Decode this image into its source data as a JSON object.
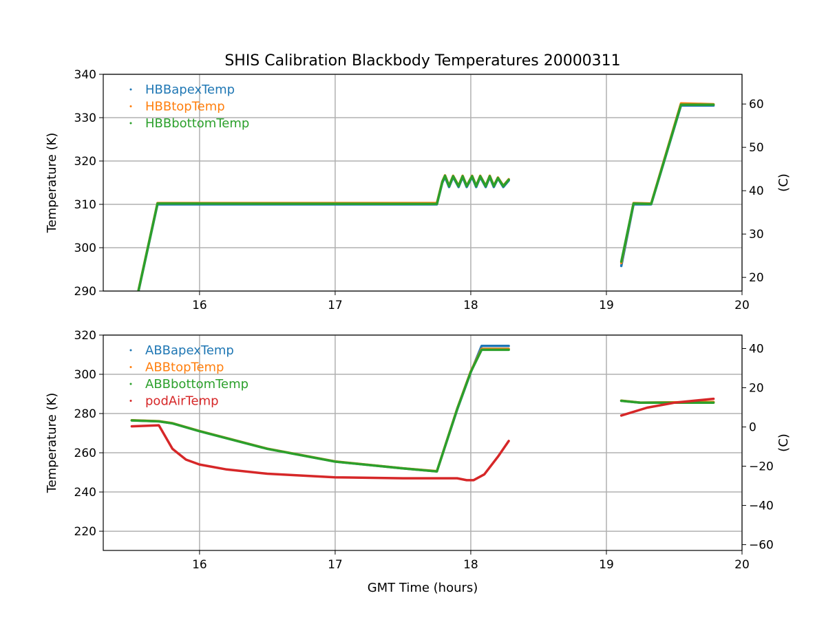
{
  "chart_data": [
    {
      "type": "line",
      "title": "SHIS Calibration Blackbody Temperatures 20000311",
      "xlabel": "",
      "ylabel": "Temperature (K)",
      "ylabel_right": "(C)",
      "xlim": [
        15.29,
        20
      ],
      "ylim": [
        290,
        340
      ],
      "xticks": [
        16,
        17,
        18,
        19,
        20
      ],
      "yticks": [
        290,
        300,
        310,
        320,
        330,
        340
      ],
      "yticks_right": [
        20,
        30,
        40,
        50,
        60
      ],
      "grid": true,
      "legend": "top-left",
      "series": [
        {
          "name": "HBBapexTemp",
          "color": "#1f77b4",
          "segments": [
            [
              [
                15.55,
                290
              ],
              [
                15.69,
                310
              ],
              [
                17.75,
                310
              ],
              [
                17.79,
                315
              ],
              [
                17.81,
                316.3
              ],
              [
                17.84,
                314
              ],
              [
                17.87,
                316.3
              ],
              [
                17.91,
                314
              ],
              [
                17.94,
                316.3
              ],
              [
                17.97,
                314
              ],
              [
                18.01,
                316.3
              ],
              [
                18.04,
                314
              ],
              [
                18.07,
                316.3
              ],
              [
                18.11,
                314
              ],
              [
                18.14,
                316.3
              ],
              [
                18.17,
                314
              ],
              [
                18.2,
                316
              ],
              [
                18.24,
                314
              ],
              [
                18.28,
                315.5
              ]
            ],
            [
              [
                19.11,
                295.8
              ],
              [
                19.2,
                310
              ],
              [
                19.33,
                310
              ],
              [
                19.55,
                332.8
              ],
              [
                19.79,
                332.8
              ]
            ]
          ]
        },
        {
          "name": "HBBtopTemp",
          "color": "#ff7f0e",
          "segments": [
            [
              [
                15.55,
                290.2
              ],
              [
                15.69,
                310.3
              ],
              [
                17.75,
                310.3
              ],
              [
                17.79,
                315.3
              ],
              [
                17.81,
                316.7
              ],
              [
                17.84,
                314.3
              ],
              [
                17.87,
                316.6
              ],
              [
                17.91,
                314.3
              ],
              [
                17.94,
                316.6
              ],
              [
                17.97,
                314.3
              ],
              [
                18.01,
                316.6
              ],
              [
                18.04,
                314.3
              ],
              [
                18.07,
                316.6
              ],
              [
                18.11,
                314.3
              ],
              [
                18.14,
                316.6
              ],
              [
                18.17,
                314.3
              ],
              [
                18.2,
                316.2
              ],
              [
                18.24,
                314.3
              ],
              [
                18.28,
                315.8
              ]
            ],
            [
              [
                19.11,
                296.5
              ],
              [
                19.2,
                310.3
              ],
              [
                19.33,
                310.2
              ],
              [
                19.55,
                333.3
              ],
              [
                19.79,
                333.1
              ]
            ]
          ]
        },
        {
          "name": "HBBbottomTemp",
          "color": "#2ca02c",
          "segments": [
            [
              [
                15.55,
                290.1
              ],
              [
                15.69,
                310.2
              ],
              [
                17.75,
                310.1
              ],
              [
                17.79,
                315.2
              ],
              [
                17.81,
                316.6
              ],
              [
                17.84,
                314.2
              ],
              [
                17.87,
                316.5
              ],
              [
                17.91,
                314.2
              ],
              [
                17.94,
                316.5
              ],
              [
                17.97,
                314.2
              ],
              [
                18.01,
                316.5
              ],
              [
                18.04,
                314.2
              ],
              [
                18.07,
                316.5
              ],
              [
                18.11,
                314.2
              ],
              [
                18.14,
                316.5
              ],
              [
                18.17,
                314.2
              ],
              [
                18.2,
                316.1
              ],
              [
                18.24,
                314.2
              ],
              [
                18.28,
                315.7
              ]
            ],
            [
              [
                19.11,
                296.8
              ],
              [
                19.2,
                310.2
              ],
              [
                19.33,
                310.1
              ],
              [
                19.55,
                333
              ],
              [
                19.79,
                333
              ]
            ]
          ]
        }
      ]
    },
    {
      "type": "line",
      "title": "",
      "xlabel": "GMT Time (hours)",
      "ylabel": "Temperature (K)",
      "ylabel_right": "(C)",
      "xlim": [
        15.29,
        20
      ],
      "ylim": [
        210.2,
        320
      ],
      "xticks": [
        16,
        17,
        18,
        19,
        20
      ],
      "yticks": [
        220,
        240,
        260,
        280,
        300,
        320
      ],
      "yticks_right": [
        -60,
        -40,
        -20,
        0,
        20,
        40
      ],
      "grid": true,
      "legend": "top-left",
      "series": [
        {
          "name": "ABBapexTemp",
          "color": "#1f77b4",
          "segments": [
            [
              [
                15.5,
                276.5
              ],
              [
                15.7,
                276
              ],
              [
                15.8,
                275
              ],
              [
                16.0,
                271
              ],
              [
                16.5,
                262
              ],
              [
                17.0,
                255.5
              ],
              [
                17.5,
                252
              ],
              [
                17.75,
                250.5
              ],
              [
                17.9,
                282
              ],
              [
                18.0,
                301
              ],
              [
                18.08,
                314.5
              ],
              [
                18.28,
                314.5
              ]
            ],
            [
              [
                19.11,
                286.5
              ],
              [
                19.25,
                285.5
              ],
              [
                19.79,
                285.8
              ]
            ]
          ]
        },
        {
          "name": "ABBtopTemp",
          "color": "#ff7f0e",
          "segments": [
            [
              [
                15.5,
                276.6
              ],
              [
                15.7,
                276.1
              ],
              [
                15.8,
                275.1
              ],
              [
                16.0,
                271.1
              ],
              [
                16.5,
                262.1
              ],
              [
                17.0,
                255.6
              ],
              [
                17.5,
                252.1
              ],
              [
                17.75,
                250.6
              ],
              [
                17.9,
                282.5
              ],
              [
                18.0,
                301.5
              ],
              [
                18.08,
                313
              ],
              [
                18.28,
                313
              ]
            ],
            [
              [
                19.11,
                286.6
              ],
              [
                19.25,
                285.6
              ],
              [
                19.79,
                285.9
              ]
            ]
          ]
        },
        {
          "name": "ABBbottomTemp",
          "color": "#2ca02c",
          "segments": [
            [
              [
                15.5,
                276.5
              ],
              [
                15.7,
                276
              ],
              [
                15.8,
                275
              ],
              [
                16.0,
                271
              ],
              [
                16.5,
                262
              ],
              [
                17.0,
                255.5
              ],
              [
                17.5,
                252
              ],
              [
                17.75,
                250.5
              ],
              [
                17.9,
                282.3
              ],
              [
                18.0,
                301.2
              ],
              [
                18.08,
                312.5
              ],
              [
                18.28,
                312.5
              ]
            ],
            [
              [
                19.11,
                286.5
              ],
              [
                19.25,
                285.5
              ],
              [
                19.79,
                285.5
              ]
            ]
          ]
        },
        {
          "name": "podAirTemp",
          "color": "#d62728",
          "segments": [
            [
              [
                15.5,
                273.5
              ],
              [
                15.7,
                274
              ],
              [
                15.8,
                262
              ],
              [
                15.9,
                256.5
              ],
              [
                16.0,
                254
              ],
              [
                16.2,
                251.5
              ],
              [
                16.5,
                249.3
              ],
              [
                17.0,
                247.5
              ],
              [
                17.5,
                247
              ],
              [
                17.9,
                247
              ],
              [
                17.97,
                246
              ],
              [
                18.02,
                246
              ],
              [
                18.1,
                249
              ],
              [
                18.2,
                258
              ],
              [
                18.28,
                266
              ]
            ],
            [
              [
                19.11,
                279
              ],
              [
                19.3,
                283
              ],
              [
                19.5,
                285.5
              ],
              [
                19.79,
                287.5
              ]
            ]
          ]
        }
      ]
    }
  ]
}
